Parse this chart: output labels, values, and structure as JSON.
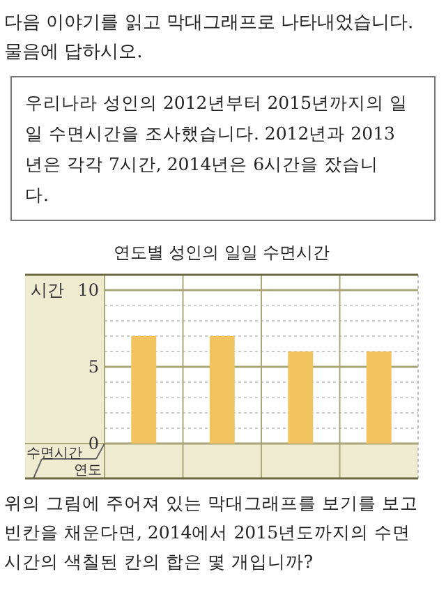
{
  "chart_data": {
    "type": "bar",
    "title": "연도별 성인의 일일 수면시간",
    "ylabel": "시간",
    "categories": [
      null,
      null,
      null,
      null
    ],
    "values": [
      7,
      7,
      6,
      6
    ],
    "color": "#f2c45f",
    "ylim": [
      0,
      11
    ],
    "yticks": [
      0,
      {
        "value": 1,
        "label": null
      },
      {
        "value": 2,
        "label": null
      },
      {
        "value": 3,
        "label": null
      },
      {
        "value": 4,
        "label": null
      },
      5,
      {
        "value": 6,
        "label": null
      },
      {
        "value": 7,
        "label": null
      },
      {
        "value": 8,
        "label": null
      },
      {
        "value": 9,
        "label": null
      },
      10
    ],
    "grid": "y",
    "annotations": [
      "다음 이야기를 읽고 막대그래프로 나타내었습니다.\n물음에 답하시오.",
      "우리나라 성인의 2012년부터 2015년까지의 일\n일 수면시간을 조사했습니다. 2012년과 2013\n년은 각각 7시간, 2014년은 6시간을 잤습니\n다.",
      "위의 그림에 주어져 있는 막대그래프를 보기를 보고\n빈칸을 채운다면, 2014에서 2015년도까지의 수면\n시간의 색칠된 칸의 합은 몇 개입니까?",
      "수면시간",
      "연도"
    ]
  }
}
